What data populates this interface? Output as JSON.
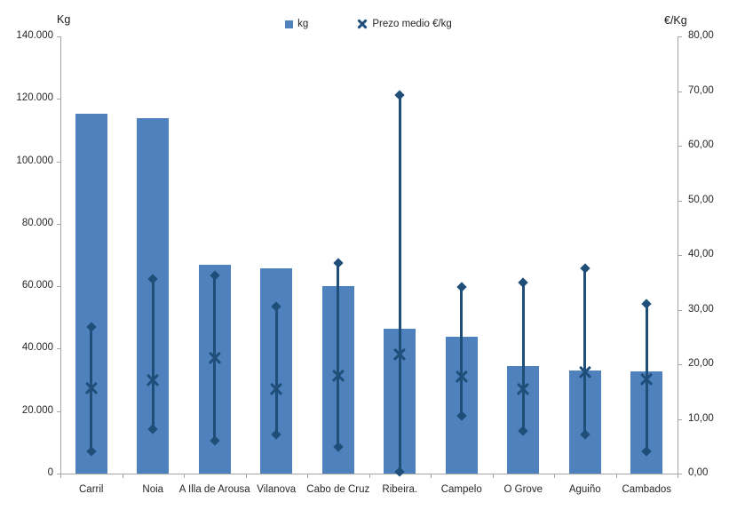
{
  "chart": {
    "left_axis_title": "Kg",
    "right_axis_title": "€/Kg",
    "legend": [
      {
        "label": "kg",
        "marker": "square-icon"
      },
      {
        "label": "Prezo medio €/kg",
        "marker": "x-icon"
      }
    ],
    "colors": {
      "bar": "#4F81BD",
      "line": "#1F4E79",
      "axis": "#A6A6A6",
      "text": "#262626"
    }
  },
  "chart_data": {
    "type": "bar",
    "title": "",
    "categories": [
      "Carril",
      "Noia",
      "A Illa de Arousa",
      "Vilanova",
      "Cabo de Cruz",
      "Ribeira.",
      "Campelo",
      "O Grove",
      "Aguiño",
      "Cambados"
    ],
    "series": [
      {
        "name": "kg",
        "type": "bar",
        "axis": "left",
        "values": [
          115200,
          113900,
          66900,
          65700,
          60100,
          46500,
          43700,
          34400,
          33100,
          32700
        ]
      },
      {
        "name": "Prezo medio €/kg",
        "type": "high-low-mean",
        "axis": "right",
        "mean": [
          15.6,
          17.1,
          21.1,
          15.5,
          17.9,
          21.8,
          17.7,
          15.4,
          18.6,
          17.3
        ],
        "high": [
          26.9,
          35.6,
          36.3,
          30.6,
          38.5,
          69.3,
          34.2,
          35.0,
          37.5,
          31.1
        ],
        "low": [
          4.1,
          8.2,
          6.0,
          7.2,
          4.9,
          0.3,
          10.5,
          7.8,
          7.2,
          4.0
        ]
      }
    ],
    "left_axis": {
      "label": "Kg",
      "min": 0,
      "max": 140000,
      "step": 20000,
      "tick_labels": [
        "0",
        "20.000",
        "40.000",
        "60.000",
        "80.000",
        "100.000",
        "120.000",
        "140.000"
      ]
    },
    "right_axis": {
      "label": "€/Kg",
      "min": 0,
      "max": 80,
      "step": 10,
      "tick_labels": [
        "0,00",
        "10,00",
        "20,00",
        "30,00",
        "40,00",
        "50,00",
        "60,00",
        "70,00",
        "80,00"
      ]
    },
    "grid": false,
    "legend_position": "top-center"
  }
}
